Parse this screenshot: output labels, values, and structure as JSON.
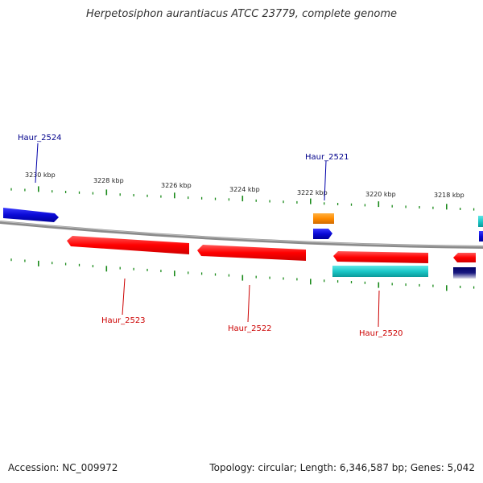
{
  "title": "Herpetosiphon aurantiacus ATCC 23779, complete genome",
  "footer": {
    "accession": "Accession: NC_009972",
    "topology": "Topology: circular; Length: 6,346,587 bp; Genes: 5,042"
  },
  "kbp_labels": [
    "3230 kbp",
    "3228 kbp",
    "3226 kbp",
    "3224 kbp",
    "3222 kbp",
    "3220 kbp",
    "3218 kbp"
  ],
  "gene_labels": [
    "Haur_2524",
    "Haur_2521",
    "Haur_2523",
    "Haur_2522",
    "Haur_2520"
  ],
  "colors": {
    "forward": "#0a0ad6",
    "reverse": "#ff0000",
    "orange": "#ff8c00",
    "cyan": "#1cc8c8",
    "backbone": "#8a8a8a",
    "tick": "#1a8a1a",
    "forward_label": "#00008b",
    "reverse_label": "#cc0000"
  }
}
